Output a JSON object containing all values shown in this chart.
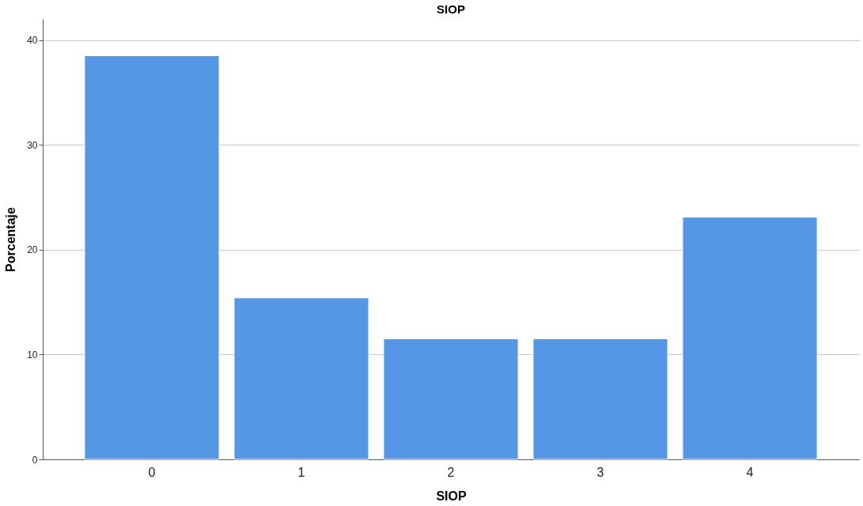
{
  "chart_data": {
    "type": "bar",
    "title": "SIOP",
    "xlabel": "SIOP",
    "ylabel": "Porcentaje",
    "categories": [
      "0",
      "1",
      "2",
      "3",
      "4"
    ],
    "values": [
      38.5,
      15.4,
      11.5,
      11.5,
      23.1
    ],
    "color": "#5596e5",
    "ylim": [
      0,
      42
    ],
    "yticks": [
      0,
      10,
      20,
      30,
      40
    ],
    "grid": "y"
  }
}
